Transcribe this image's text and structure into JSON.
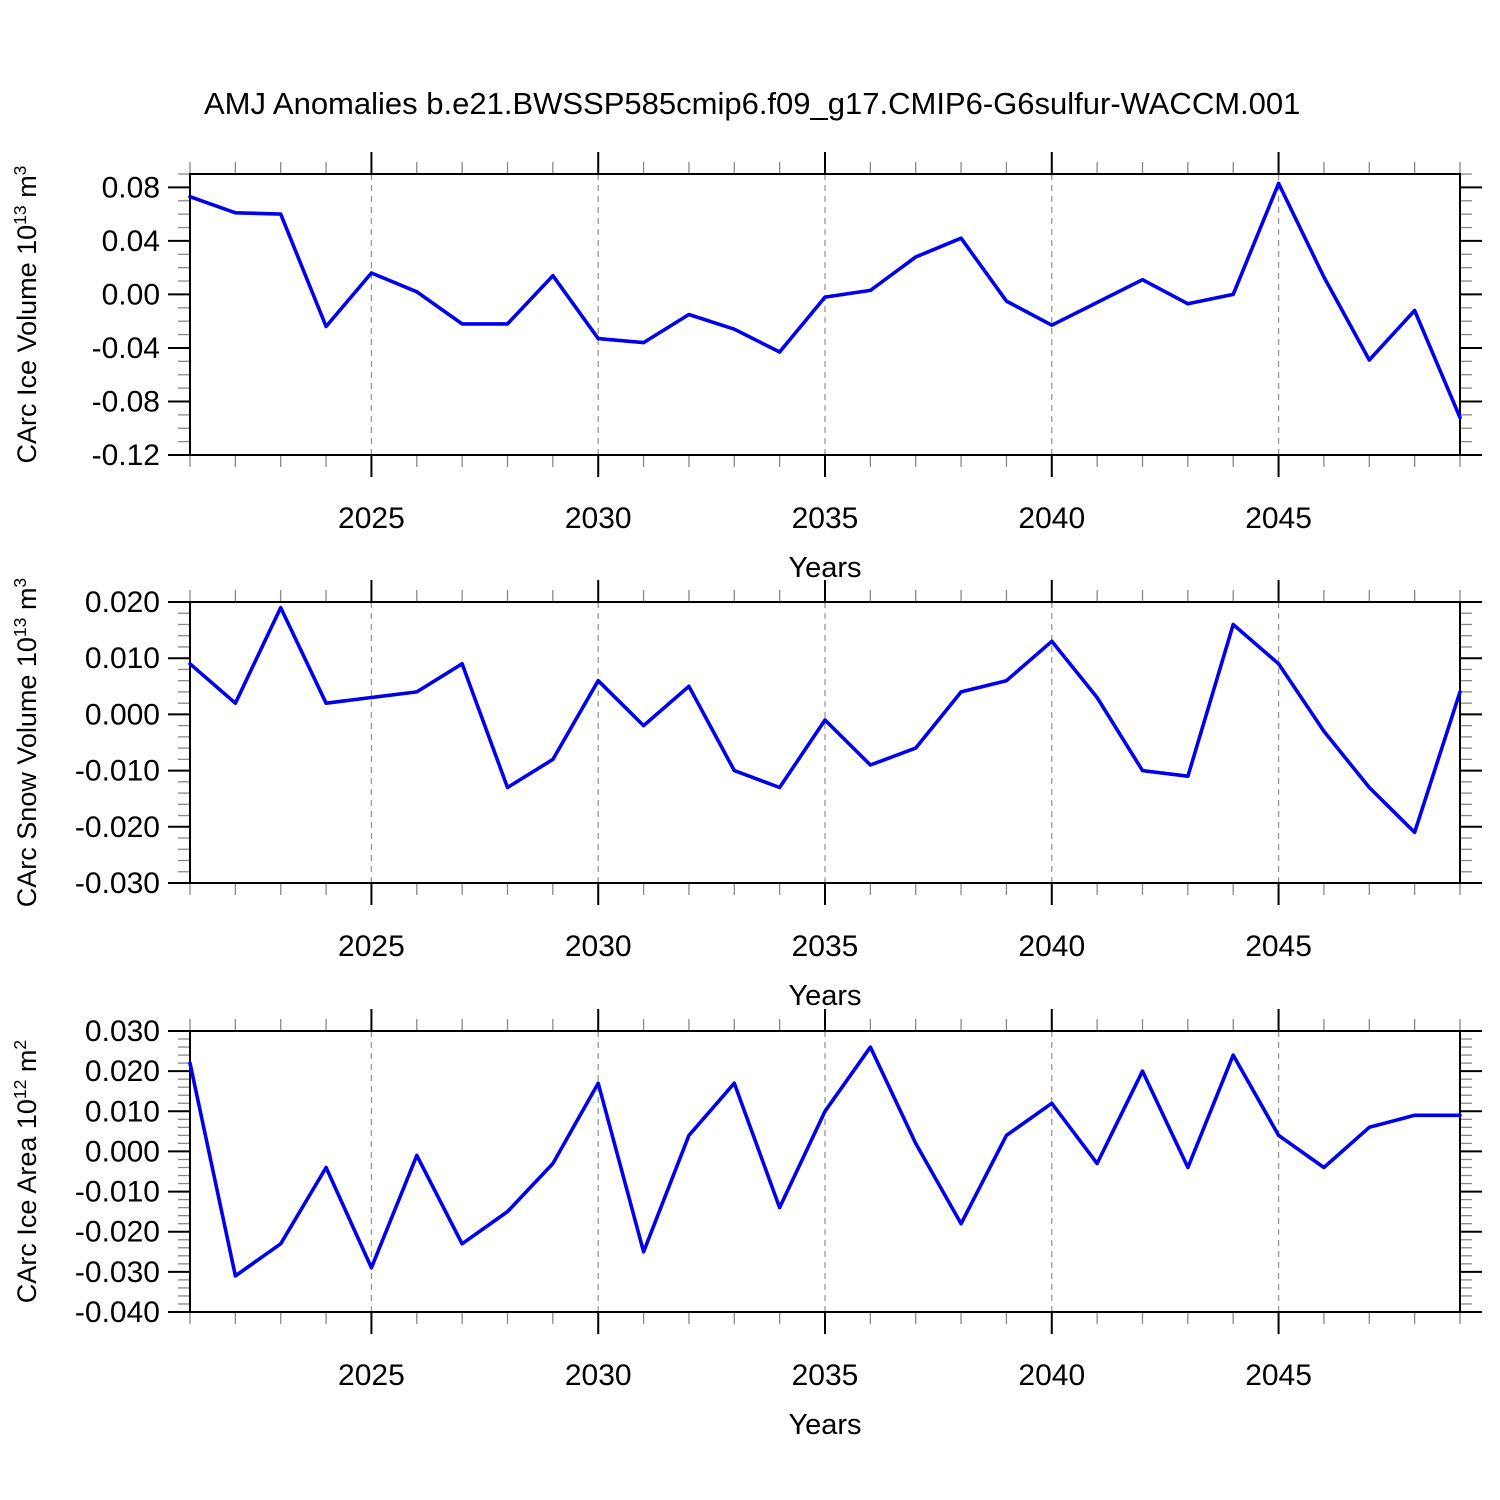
{
  "title": "AMJ Anomalies b.e21.BWSSP585cmip6.f09_g17.CMIP6-G6sulfur-WACCM.001",
  "line_color": "#0000ee",
  "grid_color": "#999999",
  "x_axis": {
    "label": "Years",
    "range": [
      2021,
      2049
    ],
    "major_ticks": [
      2025,
      2030,
      2035,
      2040,
      2045
    ],
    "major_tick_labels": [
      "2025",
      "2030",
      "2035",
      "2040",
      "2045"
    ],
    "minor_step": 1,
    "years": [
      2021,
      2022,
      2023,
      2024,
      2025,
      2026,
      2027,
      2028,
      2029,
      2030,
      2031,
      2032,
      2033,
      2034,
      2035,
      2036,
      2037,
      2038,
      2039,
      2040,
      2041,
      2042,
      2043,
      2044,
      2045,
      2046,
      2047,
      2048,
      2049
    ]
  },
  "chart_data": [
    {
      "type": "line",
      "name": "ice-volume",
      "ylabel": "CArc Ice Volume 10^13 m^3",
      "ylim": [
        -0.12,
        0.09
      ],
      "ytick_values": [
        0.08,
        0.04,
        0.0,
        -0.04,
        -0.08,
        -0.12
      ],
      "ytick_labels": [
        "0.08",
        "0.04",
        "0.00",
        "-0.04",
        "-0.08",
        "-0.12"
      ],
      "y_minor_step": 0.01,
      "grid": "dashed-vertical-at-major-x",
      "legend": "none",
      "values": [
        0.073,
        0.061,
        0.06,
        -0.024,
        0.016,
        0.002,
        -0.022,
        -0.022,
        0.014,
        -0.033,
        -0.036,
        -0.015,
        -0.026,
        -0.043,
        -0.002,
        0.003,
        0.028,
        0.042,
        -0.005,
        -0.023,
        -0.006,
        0.011,
        -0.007,
        0.0,
        0.083,
        0.013,
        -0.049,
        -0.012,
        -0.092
      ]
    },
    {
      "type": "line",
      "name": "snow-volume",
      "ylabel": "CArc Snow Volume 10^13 m^3",
      "ylim": [
        -0.03,
        0.02
      ],
      "ytick_values": [
        0.02,
        0.01,
        0.0,
        -0.01,
        -0.02,
        -0.03
      ],
      "ytick_labels": [
        "0.020",
        "0.010",
        "0.000",
        "-0.010",
        "-0.020",
        "-0.030"
      ],
      "y_minor_step": 0.002,
      "grid": "dashed-vertical-at-major-x",
      "legend": "none",
      "values": [
        0.009,
        0.002,
        0.019,
        0.002,
        0.003,
        0.004,
        0.009,
        -0.013,
        -0.008,
        0.006,
        -0.002,
        0.005,
        -0.01,
        -0.013,
        -0.001,
        -0.009,
        -0.006,
        0.004,
        0.006,
        0.013,
        0.003,
        -0.01,
        -0.011,
        0.016,
        0.009,
        -0.003,
        -0.013,
        -0.021,
        0.004
      ]
    },
    {
      "type": "line",
      "name": "ice-area",
      "ylabel": "CArc Ice Area 10^12 m^2",
      "ylim": [
        -0.04,
        0.03
      ],
      "ytick_values": [
        0.03,
        0.02,
        0.01,
        0.0,
        -0.01,
        -0.02,
        -0.03,
        -0.04
      ],
      "ytick_labels": [
        "0.030",
        "0.020",
        "0.010",
        "0.000",
        "-0.010",
        "-0.020",
        "-0.030",
        "-0.040"
      ],
      "y_minor_step": 0.002,
      "grid": "dashed-vertical-at-major-x",
      "legend": "none",
      "values": [
        0.022,
        -0.031,
        -0.023,
        -0.004,
        -0.029,
        -0.001,
        -0.023,
        -0.015,
        -0.003,
        0.017,
        -0.025,
        0.004,
        0.017,
        -0.014,
        0.01,
        0.026,
        0.002,
        -0.018,
        0.004,
        0.012,
        -0.003,
        0.02,
        -0.004,
        0.024,
        0.004,
        -0.004,
        0.006,
        0.009,
        0.009
      ]
    }
  ]
}
